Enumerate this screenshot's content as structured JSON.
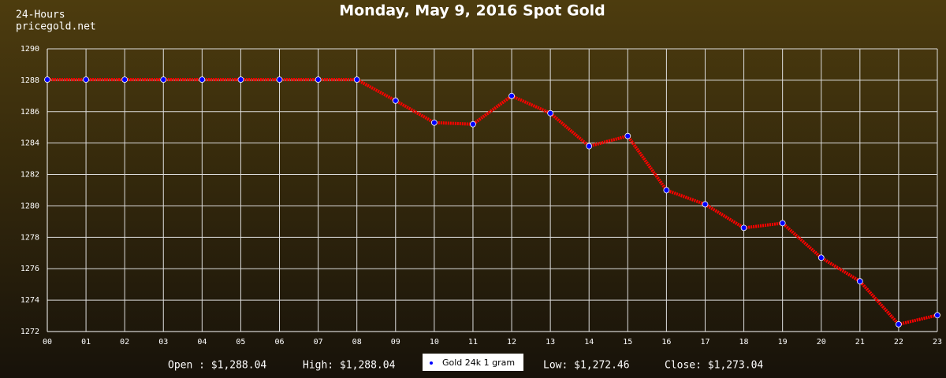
{
  "chart_data": {
    "type": "line",
    "title": "Monday, May 9, 2016 Spot Gold",
    "annotations": [
      "24-Hours",
      "pricegold.net"
    ],
    "categories": [
      "00",
      "01",
      "02",
      "03",
      "04",
      "05",
      "06",
      "07",
      "08",
      "09",
      "10",
      "11",
      "12",
      "13",
      "14",
      "15",
      "16",
      "17",
      "18",
      "19",
      "20",
      "21",
      "22",
      "23"
    ],
    "series": [
      {
        "name": "Gold 24k 1 gram",
        "color": "#ff0000",
        "marker_color": "#0000ff",
        "values": [
          1288.04,
          1288.04,
          1288.04,
          1288.04,
          1288.04,
          1288.04,
          1288.04,
          1288.04,
          1288.04,
          1286.7,
          1285.3,
          1285.2,
          1287.0,
          1285.9,
          1283.8,
          1284.45,
          1281.0,
          1280.1,
          1278.6,
          1278.9,
          1276.7,
          1275.2,
          1272.46,
          1273.04
        ]
      }
    ],
    "ylim": [
      1272,
      1290
    ],
    "yticks": [
      1272,
      1274,
      1276,
      1278,
      1280,
      1282,
      1284,
      1286,
      1288,
      1290
    ],
    "grid": true,
    "stats": [
      "Open : $1,288.04",
      "High: $1,288.04",
      "Low: $1,272.46",
      "Close: $1,273.04"
    ]
  }
}
